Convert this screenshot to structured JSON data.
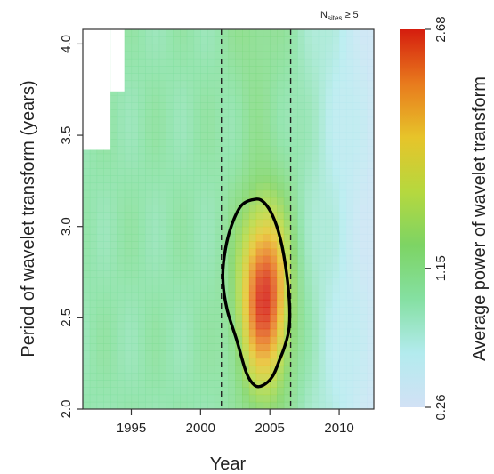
{
  "chart_data": {
    "type": "heatmap",
    "subtitle_main": "N",
    "subtitle_sub": "sites",
    "subtitle_rest": " ≥ 5",
    "xlabel": "Year",
    "ylabel": "Period of wavelet transform (years)",
    "xlim": [
      1991.5,
      2012.5
    ],
    "ylim": [
      2.0,
      4.08
    ],
    "x_ticks": [
      1995,
      2000,
      2005,
      2010
    ],
    "y_ticks": [
      2.0,
      2.5,
      3.0,
      3.5,
      4.0
    ],
    "x_tick_labels": [
      "1995",
      "2000",
      "2005",
      "2010"
    ],
    "y_tick_labels": [
      "2.0",
      "2.5",
      "3.0",
      "3.5",
      "4.0"
    ],
    "colorbar": {
      "label": "Average power of wavelet transform",
      "min": 0.26,
      "max": 2.68,
      "tick_values": [
        0.26,
        1.15,
        2.68
      ],
      "tick_labels": [
        "0.26",
        "1.15",
        "2.68"
      ],
      "colors": [
        "#d2e1f5",
        "#b3ebee",
        "#85e0a2",
        "#7dd464",
        "#b6d83e",
        "#e7c42a",
        "#e87a1d",
        "#d51d0e"
      ]
    },
    "dashed_lines_x": [
      2001.5,
      2006.5
    ],
    "cone_of_influence": [
      {
        "x_start": 1991.5,
        "x_end": 1993.5,
        "period_above": 3.42
      },
      {
        "x_start": 1993.5,
        "x_end": 1994.5,
        "period_above": 3.74
      }
    ],
    "significance_contour": [
      [
        2004.0,
        3.15
      ],
      [
        2004.6,
        3.13
      ],
      [
        2005.2,
        3.06
      ],
      [
        2005.7,
        2.95
      ],
      [
        2006.1,
        2.8
      ],
      [
        2006.4,
        2.6
      ],
      [
        2006.4,
        2.45
      ],
      [
        2006.1,
        2.35
      ],
      [
        2005.7,
        2.27
      ],
      [
        2005.2,
        2.18
      ],
      [
        2004.5,
        2.13
      ],
      [
        2003.9,
        2.13
      ],
      [
        2003.3,
        2.2
      ],
      [
        2002.6,
        2.38
      ],
      [
        2001.9,
        2.55
      ],
      [
        2001.6,
        2.72
      ],
      [
        2001.8,
        2.88
      ],
      [
        2002.3,
        3.02
      ],
      [
        2003.0,
        3.12
      ],
      [
        2004.0,
        3.15
      ]
    ],
    "power_model": {
      "background": 0.95,
      "peak": {
        "x": 2004.6,
        "y": 2.62,
        "amplitude": 1.73,
        "sigma_x": 1.3,
        "sigma_y": 0.36
      },
      "high_period_band": {
        "x": 2003.9,
        "sigma_x": 1.3,
        "amplitude": 0.22
      },
      "late_decline": {
        "x_start": 2006.5,
        "x_end": 2012.5,
        "amount": 0.6
      }
    }
  }
}
